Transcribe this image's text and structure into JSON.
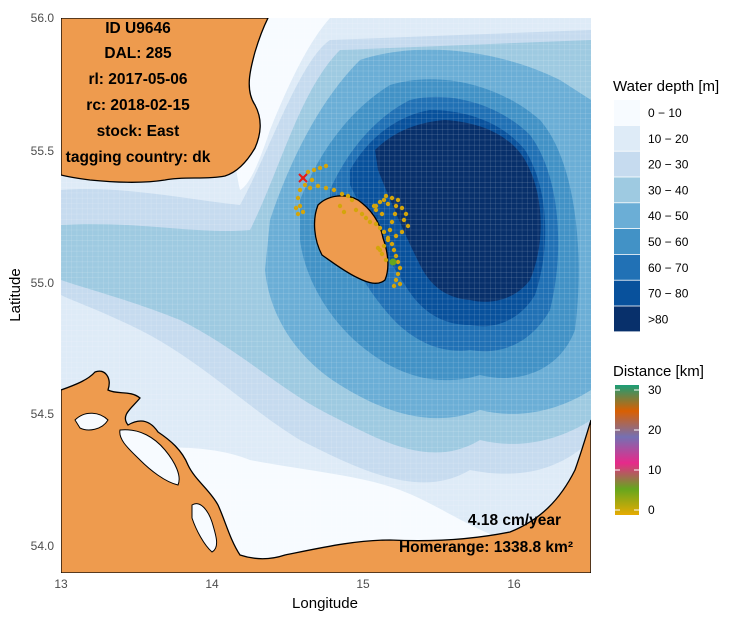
{
  "map": {
    "info_lines": [
      "ID U9646",
      "DAL: 285",
      "rl: 2017-05-06",
      "rc: 2018-02-15",
      "stock: East",
      "tagging country: dk"
    ],
    "speed": "4.18 cm/year",
    "homerange": "Homerange: 1338.8 km²",
    "x_axis": {
      "title": "Longitude",
      "ticks": [
        "13",
        "14",
        "15",
        "16"
      ]
    },
    "y_axis": {
      "title": "Latitude",
      "ticks": [
        "56.0",
        "55.5",
        "55.0",
        "54.5",
        "54.0"
      ]
    },
    "land_color": "#EE9B4E",
    "coast_color": "#000000",
    "release_marker_color": "#E41A1C",
    "track_color": "#D4A50B"
  },
  "legend_depth": {
    "title": "Water depth [m]",
    "items": [
      {
        "label": "0 − 10",
        "color": "#F7FBFF"
      },
      {
        "label": "10 − 20",
        "color": "#DEEBF7"
      },
      {
        "label": "20 − 30",
        "color": "#C6DBEF"
      },
      {
        "label": "30 − 40",
        "color": "#9ECAE1"
      },
      {
        "label": "40 − 50",
        "color": "#6BAED6"
      },
      {
        "label": "50 − 60",
        "color": "#4292C6"
      },
      {
        "label": "60 − 70",
        "color": "#2171B5"
      },
      {
        "label": "70 − 80",
        "color": "#08519C"
      },
      {
        "label": ">80",
        "color": "#08306B"
      }
    ]
  },
  "legend_distance": {
    "title": "Distance [km]",
    "ticks": [
      "30",
      "20",
      "10",
      "0"
    ],
    "gradient": [
      "#1B9E77",
      "#D95F02",
      "#7570B3",
      "#E7298A",
      "#66A61E",
      "#E6AB02"
    ]
  }
}
